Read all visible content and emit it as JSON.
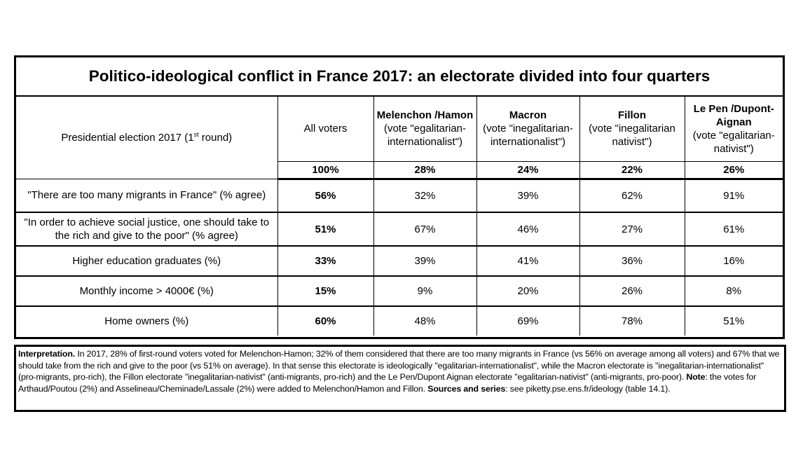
{
  "title": "Politico-ideological conflict in France 2017: an electorate divided into four quarters",
  "header": {
    "row_label_pre": "Presidential election 2017 (1",
    "row_label_sup": "st",
    "row_label_post": " round)",
    "columns": [
      {
        "name": "All voters",
        "desc": ""
      },
      {
        "name": "Melenchon /Hamon",
        "desc": "(vote \"egalitarian-internationalist\")"
      },
      {
        "name": "Macron",
        "desc": "(vote \"inegalitarian-internationalist\")"
      },
      {
        "name": "Fillon",
        "desc": "(vote \"inegalitarian nativist\")"
      },
      {
        "name": "Le Pen /Dupont-Aignan",
        "desc": "(vote \"egalitarian-nativist\")"
      }
    ],
    "shares": [
      "100%",
      "28%",
      "24%",
      "22%",
      "26%"
    ]
  },
  "rows": [
    {
      "label": "\"There are too many migrants in France\" (% agree)",
      "values": [
        "56%",
        "32%",
        "39%",
        "62%",
        "91%"
      ]
    },
    {
      "label": "\"In order to achieve social justice, one should take to the rich and give to the poor\" (% agree)",
      "values": [
        "51%",
        "67%",
        "46%",
        "27%",
        "61%"
      ]
    },
    {
      "label": "Higher education graduates (%)",
      "values": [
        "33%",
        "39%",
        "41%",
        "36%",
        "16%"
      ]
    },
    {
      "label": "Monthly income > 4000€ (%)",
      "values": [
        "15%",
        "9%",
        "20%",
        "26%",
        "8%"
      ]
    },
    {
      "label": "Home owners (%)",
      "values": [
        "60%",
        "48%",
        "69%",
        "78%",
        "51%"
      ]
    }
  ],
  "note": {
    "interp_label": "Interpretation.",
    "interp_text": " In 2017, 28% of first-round voters voted for Melenchon-Hamon; 32% of them considered that there are too many migrants in France (vs 56% on average among all voters) and 67% that we should take from the rich and give to the poor (vs 51% on average). In that sense this electorate is ideologically \"egalitarian-internationalist\", while the Macron electorate is \"inegalitarian-internationalist\" (pro-migrants, pro-rich), the Fillon electorate \"inegalitarian-nativist\" (anti-migrants, pro-rich) and the Le Pen/Dupont Aignan electorate \"egalitarian-nativist\" (anti-migrants, pro-poor). ",
    "note_label": "Note",
    "note_text": ": the votes for Arthaud/Poutou (2%) and Asselineau/Cheminade/Lassale (2%) were added to Melenchon/Hamon and Fillon. ",
    "sources_label": "Sources and series",
    "sources_text": ": see piketty.pse.ens.fr/ideology (table 14.1)."
  }
}
